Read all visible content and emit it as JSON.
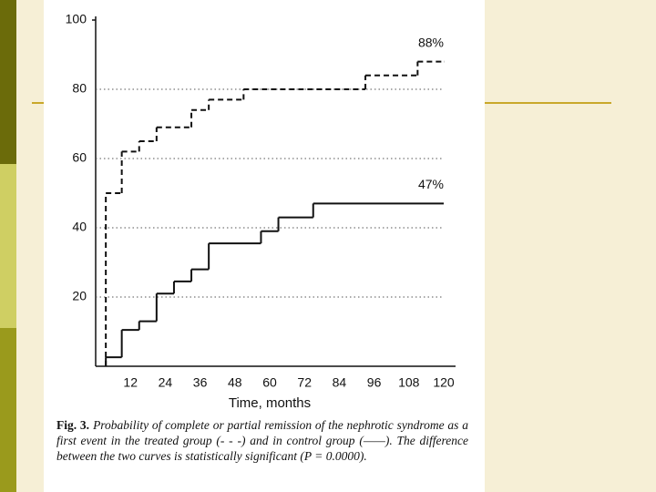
{
  "chart_data": {
    "type": "step",
    "xlabel": "Time, months",
    "xlim": [
      0,
      120
    ],
    "xticks": [
      12,
      24,
      36,
      48,
      60,
      72,
      84,
      96,
      108,
      120
    ],
    "ylim": [
      0,
      100
    ],
    "yticks": [
      20,
      40,
      60,
      80,
      100
    ],
    "grid": true,
    "series": [
      {
        "style": "dashed",
        "color": "#111111",
        "x": [
          3.5,
          3.5,
          9,
          15,
          21,
          33,
          39,
          51,
          93,
          111,
          120
        ],
        "values": [
          0,
          50,
          62,
          65,
          69,
          74,
          77,
          80,
          84,
          88,
          88
        ]
      },
      {
        "style": "solid",
        "color": "#111111",
        "x": [
          3.5,
          3.5,
          9,
          15,
          21,
          27,
          33,
          39,
          57,
          63,
          75,
          120
        ],
        "values": [
          0,
          2.6,
          10.5,
          13,
          21,
          24.5,
          28,
          35.5,
          39,
          43,
          47,
          47
        ]
      }
    ],
    "annotations": [
      {
        "text": "88%",
        "x": 120,
        "y": 88
      },
      {
        "text": "47%",
        "x": 120,
        "y": 47
      }
    ]
  },
  "caption": {
    "label": "Fig. 3.",
    "text": "Probability of complete or partial remission of the nephrotic syndrome as a first event in the treated group (- - -) and in control group (——). The difference between the two curves is statistically significant (P = 0.0000)."
  }
}
